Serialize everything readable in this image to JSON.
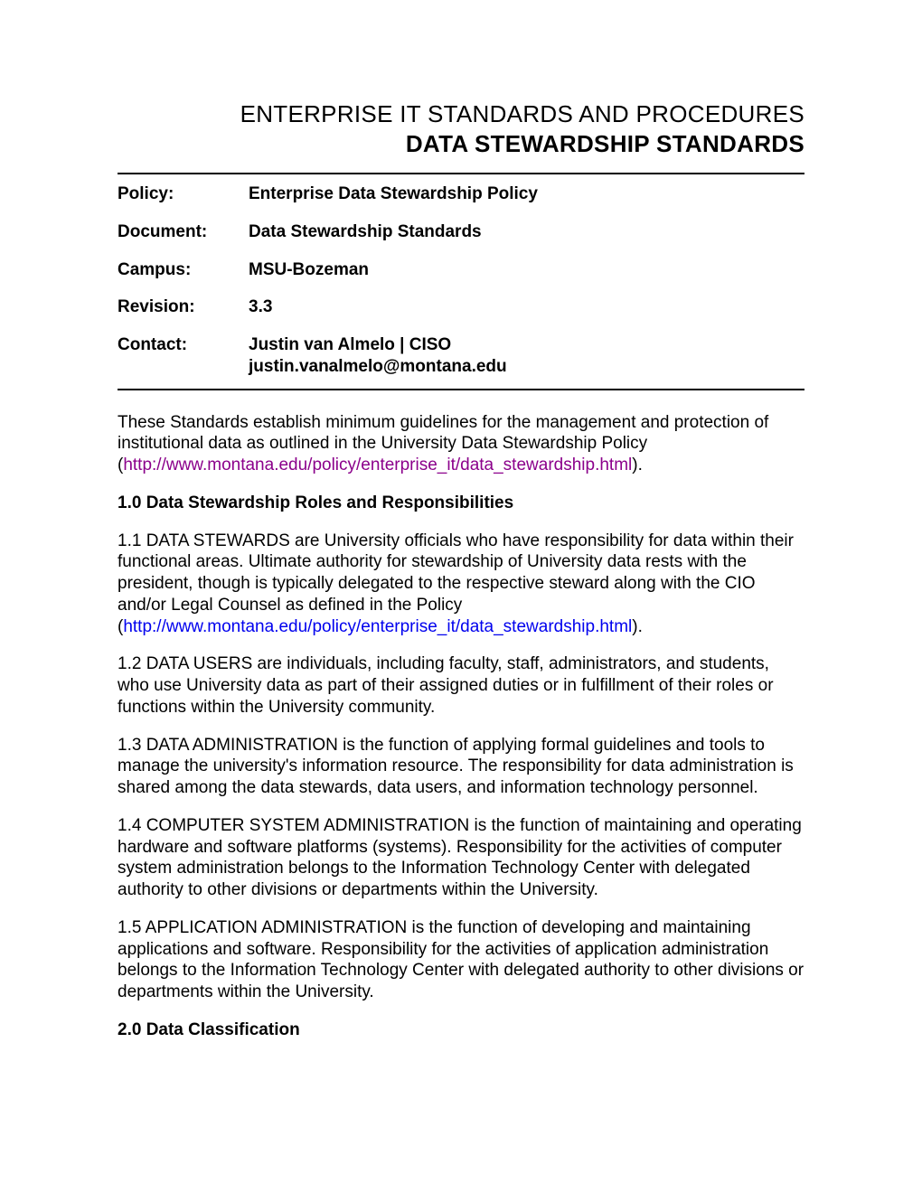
{
  "title": {
    "line1": "ENTERPRISE IT STANDARDS AND PROCEDURES",
    "line2": "DATA STEWARDSHIP STANDARDS"
  },
  "meta": {
    "policy_label": "Policy:",
    "policy_value": "Enterprise Data Stewardship Policy",
    "document_label": "Document:",
    "document_value": "Data Stewardship Standards",
    "campus_label": "Campus:",
    "campus_value": "MSU-Bozeman",
    "revision_label": "Revision:",
    "revision_value": "3.3",
    "contact_label": "Contact:",
    "contact_name": "Justin van Almelo | CISO",
    "contact_email": "justin.vanalmelo@montana.edu"
  },
  "intro": {
    "text_before": "These Standards establish minimum guidelines for the management and protection of institutional data as outlined in the University Data Stewardship Policy (",
    "link": "http://www.montana.edu/policy/enterprise_it/data_stewardship.html",
    "text_after": ")."
  },
  "section1": {
    "heading": "1.0 Data Stewardship Roles and Responsibilities",
    "p1_before": "1.1 DATA STEWARDS are University officials who have responsibility for data within their functional areas. Ultimate authority for stewardship of University data rests with the president, though is typically delegated to the respective steward along with the CIO and/or Legal Counsel as defined in the Policy (",
    "p1_link": "http://www.montana.edu/policy/enterprise_it/data_stewardship.html",
    "p1_after": ").",
    "p2": "1.2 DATA USERS are individuals, including faculty, staff, administrators, and students, who use University data as part of their assigned duties or in fulfillment of their roles or functions within the University community.",
    "p3": "1.3 DATA ADMINISTRATION is the function of applying formal guidelines and tools to manage the university's information resource. The responsibility for data administration is shared among the data stewards, data users, and information technology personnel.",
    "p4": "1.4 COMPUTER SYSTEM ADMINISTRATION is the function of maintaining and operating hardware and software platforms (systems). Responsibility for the activities of computer system administration belongs to the Information Technology Center with delegated authority to other divisions or departments within the University.",
    "p5": "1.5 APPLICATION ADMINISTRATION is the function of developing and maintaining applications and software. Responsibility for the activities of application administration belongs to the Information Technology Center with delegated authority to other divisions or departments within the University."
  },
  "section2": {
    "heading": "2.0 Data Classification"
  },
  "colors": {
    "text": "#000000",
    "link": "#0000ee",
    "link_visited": "#8b008b",
    "background": "#ffffff"
  },
  "typography": {
    "body_fontsize": 19,
    "title_fontsize": 26,
    "font_family": "Arial"
  }
}
